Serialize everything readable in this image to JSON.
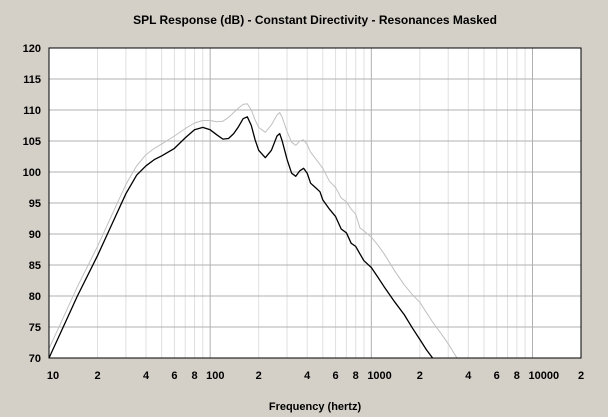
{
  "chart_data": {
    "type": "line",
    "title": "SPL Response (dB) - Constant Directivity - Resonances Masked",
    "xlabel": "Frequency (hertz)",
    "ylabel": "",
    "x_scale": "log",
    "xlim": [
      10,
      20000
    ],
    "ylim": [
      70,
      120
    ],
    "grid": true,
    "x_ticks": [
      {
        "value": 10,
        "label": "10"
      },
      {
        "value": 20,
        "label": "2"
      },
      {
        "value": 40,
        "label": "4"
      },
      {
        "value": 60,
        "label": "6"
      },
      {
        "value": 80,
        "label": "8"
      },
      {
        "value": 100,
        "label": "100"
      },
      {
        "value": 200,
        "label": "2"
      },
      {
        "value": 400,
        "label": "4"
      },
      {
        "value": 600,
        "label": "6"
      },
      {
        "value": 800,
        "label": "8"
      },
      {
        "value": 1000,
        "label": "1000"
      },
      {
        "value": 2000,
        "label": "2"
      },
      {
        "value": 4000,
        "label": "4"
      },
      {
        "value": 6000,
        "label": "6"
      },
      {
        "value": 8000,
        "label": "8"
      },
      {
        "value": 10000,
        "label": "10000"
      },
      {
        "value": 20000,
        "label": "2"
      }
    ],
    "y_ticks": [
      {
        "value": 70,
        "label": "70"
      },
      {
        "value": 75,
        "label": "75"
      },
      {
        "value": 80,
        "label": "80"
      },
      {
        "value": 85,
        "label": "85"
      },
      {
        "value": 90,
        "label": "90"
      },
      {
        "value": 95,
        "label": "95"
      },
      {
        "value": 100,
        "label": "100"
      },
      {
        "value": 105,
        "label": "105"
      },
      {
        "value": 110,
        "label": "110"
      },
      {
        "value": 115,
        "label": "115"
      },
      {
        "value": 120,
        "label": "120"
      }
    ],
    "series": [
      {
        "color": "#000000",
        "x": [
          10,
          12,
          15,
          20,
          25,
          30,
          35,
          40,
          45,
          50,
          60,
          70,
          80,
          90,
          100,
          110,
          120,
          130,
          140,
          150,
          160,
          170,
          180,
          190,
          200,
          220,
          240,
          260,
          270,
          280,
          300,
          320,
          340,
          360,
          380,
          400,
          420,
          450,
          480,
          500,
          550,
          600,
          650,
          700,
          750,
          800,
          850,
          900,
          1000,
          1100,
          1200,
          1400,
          1600,
          1800,
          2000,
          2200,
          2400
        ],
        "y": [
          70.0,
          74.5,
          80.0,
          86.5,
          92.0,
          96.5,
          99.5,
          101.0,
          102.0,
          102.6,
          103.8,
          105.5,
          106.8,
          107.2,
          106.8,
          106.0,
          105.3,
          105.4,
          106.2,
          107.3,
          108.6,
          108.9,
          107.5,
          105.2,
          103.5,
          102.3,
          103.5,
          105.8,
          106.2,
          105.0,
          102.0,
          99.8,
          99.3,
          100.2,
          100.6,
          99.8,
          98.2,
          97.5,
          96.8,
          95.5,
          94.0,
          92.8,
          90.8,
          90.2,
          88.5,
          88.0,
          86.8,
          85.7,
          84.6,
          83.0,
          81.5,
          79.0,
          77.0,
          74.8,
          73.0,
          71.3,
          70.0
        ]
      },
      {
        "color": "#c0c0c0",
        "x": [
          10,
          12,
          15,
          20,
          25,
          30,
          35,
          40,
          45,
          50,
          60,
          70,
          80,
          90,
          100,
          110,
          120,
          130,
          140,
          150,
          160,
          170,
          180,
          190,
          200,
          220,
          240,
          260,
          270,
          280,
          300,
          320,
          340,
          360,
          380,
          400,
          420,
          450,
          480,
          500,
          550,
          600,
          650,
          700,
          750,
          800,
          850,
          900,
          1000,
          1100,
          1200,
          1400,
          1600,
          1800,
          2000,
          2200,
          2400,
          2700,
          3000,
          3400
        ],
        "y": [
          71.5,
          76.0,
          81.5,
          88.0,
          93.5,
          98.0,
          101.0,
          102.8,
          103.8,
          104.5,
          105.8,
          107.0,
          107.9,
          108.3,
          108.3,
          108.1,
          108.2,
          108.8,
          109.6,
          110.3,
          110.9,
          111.0,
          110.0,
          108.4,
          107.2,
          106.4,
          107.6,
          109.2,
          109.6,
          108.8,
          106.5,
          104.8,
          104.3,
          105.0,
          105.2,
          104.4,
          103.2,
          102.2,
          101.2,
          100.6,
          98.5,
          97.5,
          95.8,
          95.2,
          94.0,
          93.2,
          91.0,
          90.5,
          89.5,
          88.2,
          86.8,
          84.0,
          81.8,
          80.2,
          79.0,
          77.3,
          75.8,
          74.0,
          72.3,
          70.0
        ]
      }
    ]
  }
}
